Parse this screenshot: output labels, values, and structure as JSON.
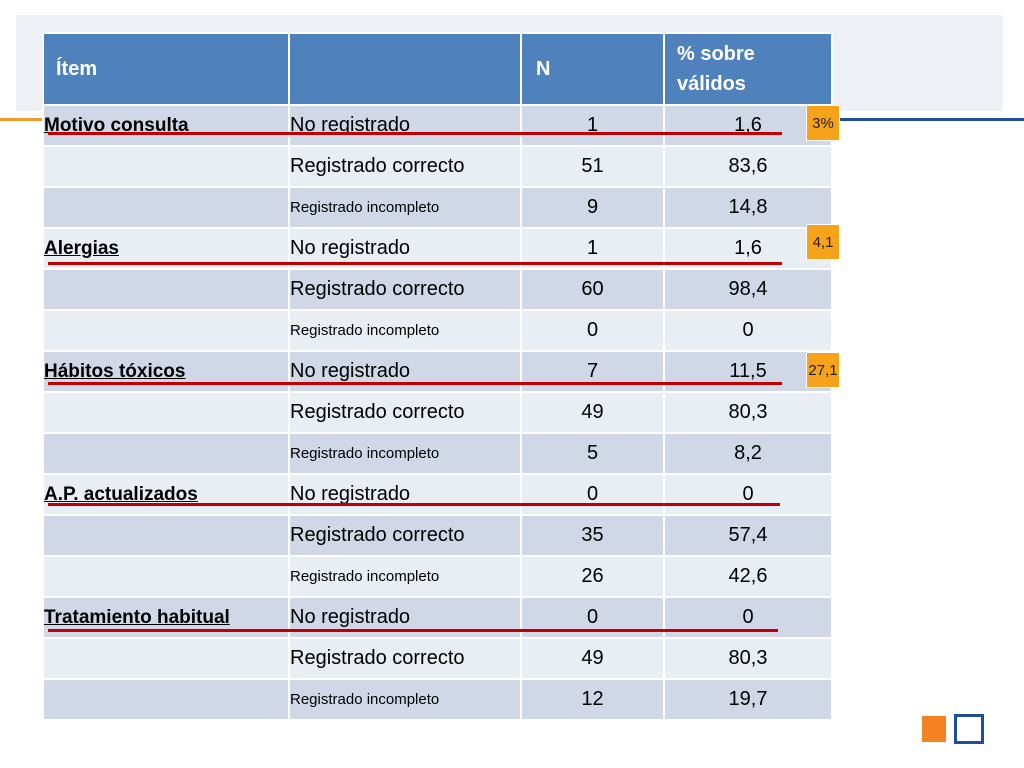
{
  "header": {
    "item": "Ítem",
    "blank": "",
    "n": "N",
    "pct": "% sobre válidos"
  },
  "rows": [
    {
      "item": "Motivo consulta",
      "cat": "No registrado",
      "n": "1",
      "pct": "1,6"
    },
    {
      "item": "",
      "cat": "Registrado correcto",
      "n": "51",
      "pct": "83,6"
    },
    {
      "item": "",
      "cat": "Registrado incompleto",
      "n": "9",
      "pct": "14,8"
    },
    {
      "item": "Alergias",
      "cat": "No registrado",
      "n": "1",
      "pct": "1,6"
    },
    {
      "item": "",
      "cat": "Registrado correcto",
      "n": "60",
      "pct": "98,4"
    },
    {
      "item": "",
      "cat": "Registrado incompleto",
      "n": "0",
      "pct": "0"
    },
    {
      "item": "Hábitos tóxicos",
      "cat": "No registrado",
      "n": "7",
      "pct": "11,5"
    },
    {
      "item": "",
      "cat": "Registrado correcto",
      "n": "49",
      "pct": "80,3"
    },
    {
      "item": "",
      "cat": "Registrado incompleto",
      "n": "5",
      "pct": "8,2"
    },
    {
      "item": "A.P. actualizados",
      "cat": "No registrado",
      "n": "0",
      "pct": "0"
    },
    {
      "item": "",
      "cat": "Registrado correcto",
      "n": "35",
      "pct": "57,4"
    },
    {
      "item": "",
      "cat": "Registrado incompleto",
      "n": "26",
      "pct": "42,6"
    },
    {
      "item": "Tratamiento habitual",
      "cat": "No registrado",
      "n": "0",
      "pct": "0"
    },
    {
      "item": "",
      "cat": "Registrado correcto",
      "n": "49",
      "pct": "80,3"
    },
    {
      "item": "",
      "cat": "Registrado incompleto",
      "n": "12",
      "pct": "19,7"
    }
  ],
  "annotations": [
    "3%",
    "4,1",
    "27,1"
  ],
  "colors": {
    "header": "#4f81bd",
    "row_dark": "#d0d8e8",
    "row_light": "#e9edf4",
    "underline": "#c00000",
    "badge": "#f7a21b",
    "accent_orange": "#f58220",
    "accent_blue": "#1f4e9d"
  },
  "icons": {
    "corner_filled": "orange-square-icon",
    "corner_outline": "outline-square-icon"
  }
}
